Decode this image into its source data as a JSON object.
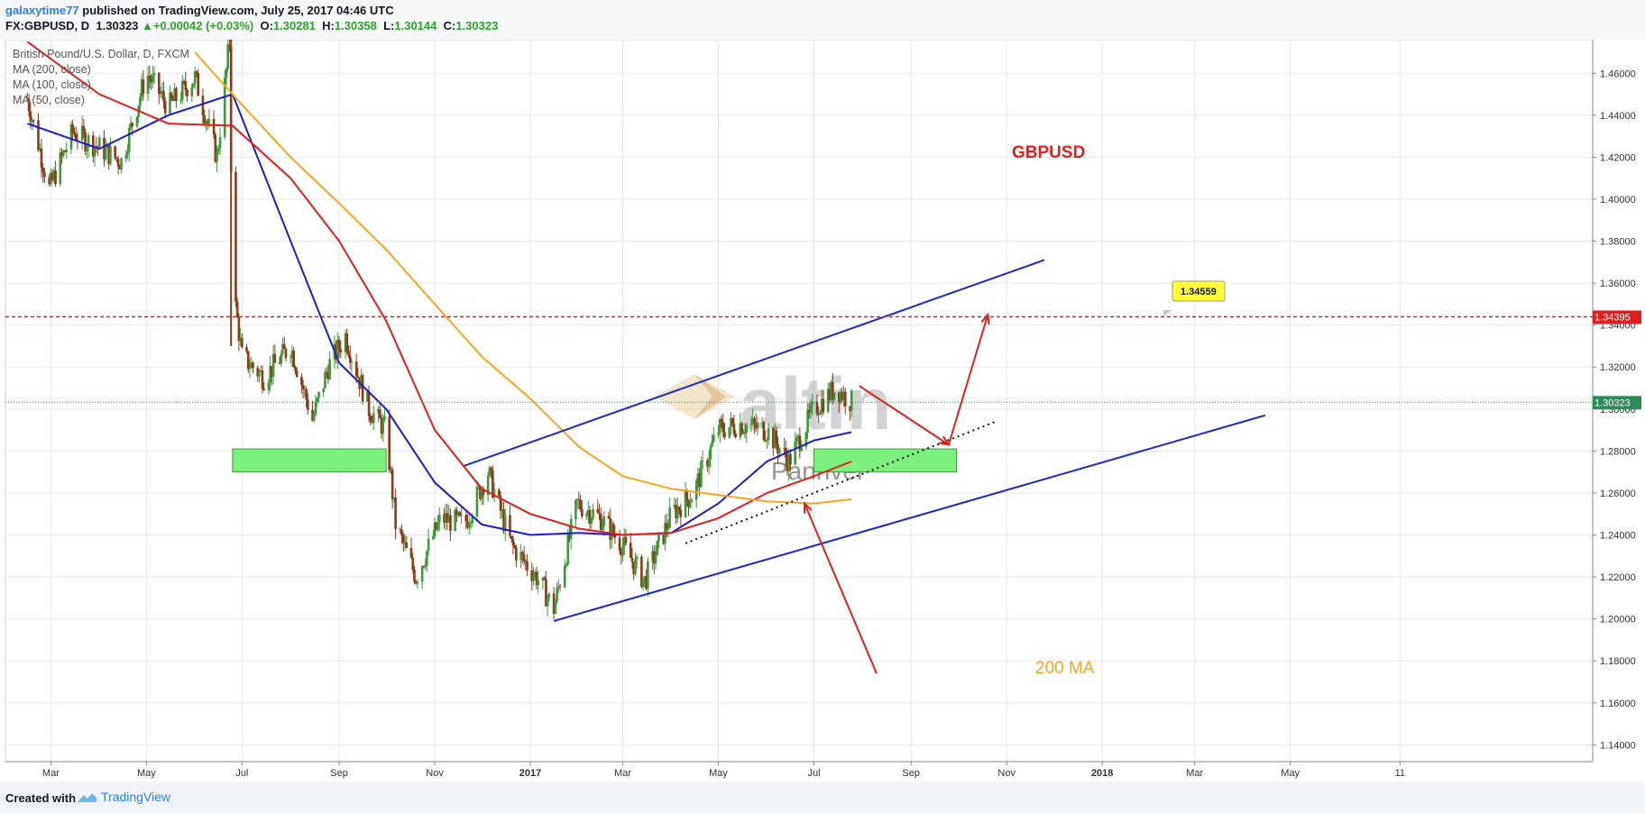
{
  "header": {
    "author": "galaxytime77",
    "published": " published on TradingView.com, July 25, 2017 04:46 UTC",
    "symbol": "FX:GBPUSD, D",
    "last": "1.30323",
    "change": "+0.00042 (+0.03%)",
    "o_label": "O:",
    "o": "1.30281",
    "h_label": "H:",
    "h": "1.30358",
    "l_label": "L:",
    "l": "1.30144",
    "c_label": "C:",
    "c": "1.30323"
  },
  "legend": {
    "title": "British Pound/U.S. Dollar, D, FXCM",
    "ma200": "MA (200, close)",
    "ma100": "MA (100, close)",
    "ma50": "MA (50, close)"
  },
  "annotations": {
    "symbol_label": "GBPUSD",
    "ma_label": "200 MA",
    "target_callout": "1.34559",
    "watermark_main": "altin",
    "watermark_sub": "Panriver"
  },
  "price_labels": {
    "resistance": "1.34395",
    "current": "1.30323"
  },
  "footer": {
    "created_with": "Created with",
    "brand": "TradingView"
  },
  "colors": {
    "ma50": "#1c1ccc",
    "ma100": "#e01e1e",
    "ma200": "#f5a623",
    "candle_up": "#3c9a3c",
    "candle_down": "#8b3a1a",
    "zone": "#7cf07c",
    "resistance": "#e01e1e",
    "channel": "#1c28cc"
  },
  "chart_data": {
    "type": "candlestick",
    "title": "British Pound/U.S. Dollar, D, FXCM",
    "x_ticks": [
      "Mar",
      "May",
      "Jul",
      "Sep",
      "Nov",
      "2017",
      "Mar",
      "May",
      "Jul",
      "Sep",
      "Nov",
      "2018",
      "Mar",
      "May",
      "11"
    ],
    "y_ticks": [
      "1.46000",
      "1.44000",
      "1.42000",
      "1.40000",
      "1.38000",
      "1.36000",
      "1.34000",
      "1.32000",
      "1.30000",
      "1.28000",
      "1.26000",
      "1.24000",
      "1.22000",
      "1.20000",
      "1.18000",
      "1.16000",
      "1.14000"
    ],
    "ylim": [
      1.132,
      1.476
    ],
    "grid": true,
    "close_series": [
      {
        "date": "2016-02-15",
        "value": 1.448
      },
      {
        "date": "2016-02-29",
        "value": 1.405
      },
      {
        "date": "2016-03-15",
        "value": 1.432
      },
      {
        "date": "2016-03-31",
        "value": 1.425
      },
      {
        "date": "2016-04-15",
        "value": 1.418
      },
      {
        "date": "2016-05-01",
        "value": 1.46
      },
      {
        "date": "2016-05-15",
        "value": 1.444
      },
      {
        "date": "2016-06-01",
        "value": 1.458
      },
      {
        "date": "2016-06-15",
        "value": 1.42
      },
      {
        "date": "2016-06-23",
        "value": 1.475
      },
      {
        "date": "2016-06-25",
        "value": 1.36
      },
      {
        "date": "2016-07-01",
        "value": 1.325
      },
      {
        "date": "2016-07-15",
        "value": 1.315
      },
      {
        "date": "2016-08-01",
        "value": 1.33
      },
      {
        "date": "2016-08-15",
        "value": 1.295
      },
      {
        "date": "2016-08-25",
        "value": 1.32
      },
      {
        "date": "2016-09-05",
        "value": 1.335
      },
      {
        "date": "2016-09-20",
        "value": 1.3
      },
      {
        "date": "2016-10-01",
        "value": 1.29
      },
      {
        "date": "2016-10-07",
        "value": 1.245
      },
      {
        "date": "2016-10-20",
        "value": 1.22
      },
      {
        "date": "2016-11-05",
        "value": 1.248
      },
      {
        "date": "2016-11-20",
        "value": 1.245
      },
      {
        "date": "2016-12-05",
        "value": 1.27
      },
      {
        "date": "2016-12-20",
        "value": 1.235
      },
      {
        "date": "2017-01-05",
        "value": 1.22
      },
      {
        "date": "2017-01-16",
        "value": 1.205
      },
      {
        "date": "2017-01-31",
        "value": 1.255
      },
      {
        "date": "2017-02-15",
        "value": 1.248
      },
      {
        "date": "2017-03-01",
        "value": 1.235
      },
      {
        "date": "2017-03-15",
        "value": 1.218
      },
      {
        "date": "2017-04-01",
        "value": 1.25
      },
      {
        "date": "2017-04-15",
        "value": 1.26
      },
      {
        "date": "2017-05-01",
        "value": 1.29
      },
      {
        "date": "2017-05-15",
        "value": 1.293
      },
      {
        "date": "2017-06-01",
        "value": 1.29
      },
      {
        "date": "2017-06-15",
        "value": 1.275
      },
      {
        "date": "2017-07-01",
        "value": 1.3
      },
      {
        "date": "2017-07-15",
        "value": 1.31
      },
      {
        "date": "2017-07-25",
        "value": 1.30323
      }
    ],
    "series": [
      {
        "name": "MA (50, close)",
        "values": [
          {
            "date": "2016-02-15",
            "value": 1.436
          },
          {
            "date": "2016-04-01",
            "value": 1.424
          },
          {
            "date": "2016-05-15",
            "value": 1.44
          },
          {
            "date": "2016-06-25",
            "value": 1.45
          },
          {
            "date": "2016-08-01",
            "value": 1.38
          },
          {
            "date": "2016-09-01",
            "value": 1.322
          },
          {
            "date": "2016-10-01",
            "value": 1.3
          },
          {
            "date": "2016-11-01",
            "value": 1.265
          },
          {
            "date": "2016-12-01",
            "value": 1.245
          },
          {
            "date": "2017-01-01",
            "value": 1.24
          },
          {
            "date": "2017-02-01",
            "value": 1.241
          },
          {
            "date": "2017-03-01",
            "value": 1.24
          },
          {
            "date": "2017-04-01",
            "value": 1.241
          },
          {
            "date": "2017-05-01",
            "value": 1.255
          },
          {
            "date": "2017-06-01",
            "value": 1.275
          },
          {
            "date": "2017-07-01",
            "value": 1.285
          },
          {
            "date": "2017-07-25",
            "value": 1.289
          }
        ]
      },
      {
        "name": "MA (100, close)",
        "values": [
          {
            "date": "2016-02-15",
            "value": 1.475
          },
          {
            "date": "2016-04-01",
            "value": 1.45
          },
          {
            "date": "2016-05-15",
            "value": 1.436
          },
          {
            "date": "2016-06-25",
            "value": 1.435
          },
          {
            "date": "2016-08-01",
            "value": 1.41
          },
          {
            "date": "2016-09-01",
            "value": 1.38
          },
          {
            "date": "2016-10-01",
            "value": 1.342
          },
          {
            "date": "2016-11-01",
            "value": 1.29
          },
          {
            "date": "2016-12-01",
            "value": 1.262
          },
          {
            "date": "2017-01-01",
            "value": 1.25
          },
          {
            "date": "2017-02-01",
            "value": 1.243
          },
          {
            "date": "2017-03-01",
            "value": 1.24
          },
          {
            "date": "2017-04-01",
            "value": 1.241
          },
          {
            "date": "2017-05-01",
            "value": 1.248
          },
          {
            "date": "2017-06-01",
            "value": 1.26
          },
          {
            "date": "2017-07-01",
            "value": 1.268
          },
          {
            "date": "2017-07-25",
            "value": 1.275
          }
        ]
      },
      {
        "name": "MA (200, close)",
        "values": [
          {
            "date": "2016-06-01",
            "value": 1.47
          },
          {
            "date": "2016-07-01",
            "value": 1.445
          },
          {
            "date": "2016-08-01",
            "value": 1.42
          },
          {
            "date": "2016-09-01",
            "value": 1.398
          },
          {
            "date": "2016-10-01",
            "value": 1.376
          },
          {
            "date": "2016-11-01",
            "value": 1.35
          },
          {
            "date": "2016-12-01",
            "value": 1.325
          },
          {
            "date": "2017-01-01",
            "value": 1.305
          },
          {
            "date": "2017-02-01",
            "value": 1.282
          },
          {
            "date": "2017-03-01",
            "value": 1.268
          },
          {
            "date": "2017-04-01",
            "value": 1.262
          },
          {
            "date": "2017-05-01",
            "value": 1.259
          },
          {
            "date": "2017-06-01",
            "value": 1.256
          },
          {
            "date": "2017-07-01",
            "value": 1.255
          },
          {
            "date": "2017-07-25",
            "value": 1.257
          }
        ]
      }
    ],
    "drawings": [
      {
        "kind": "horizontal-line",
        "name": "resistance",
        "value": 1.34395
      },
      {
        "kind": "channel-upper",
        "from": {
          "date": "2016-11-20",
          "value": 1.273
        },
        "to": {
          "date": "2017-11-25",
          "value": 1.371
        }
      },
      {
        "kind": "channel-lower",
        "from": {
          "date": "2017-01-16",
          "value": 1.199
        },
        "to": {
          "date": "2018-04-15",
          "value": 1.297
        }
      },
      {
        "kind": "dotted-trendline",
        "from": {
          "date": "2017-04-10",
          "value": 1.236
        },
        "to": {
          "date": "2017-10-25",
          "value": 1.294
        }
      },
      {
        "kind": "support-zone",
        "from": {
          "date": "2016-06-25",
          "value": 1.27
        },
        "to": {
          "date": "2016-10-01",
          "value": 1.281
        }
      },
      {
        "kind": "support-zone",
        "from": {
          "date": "2017-07-01",
          "value": 1.27
        },
        "to": {
          "date": "2017-09-30",
          "value": 1.281
        }
      },
      {
        "kind": "arrow",
        "from": {
          "date": "2017-07-30",
          "value": 1.311
        },
        "to": {
          "date": "2017-09-25",
          "value": 1.283
        }
      },
      {
        "kind": "arrow",
        "from": {
          "date": "2017-09-25",
          "value": 1.283
        },
        "to": {
          "date": "2017-10-20",
          "value": 1.345
        }
      },
      {
        "kind": "arrow",
        "from": {
          "date": "2017-08-10",
          "value": 1.174
        },
        "to": {
          "date": "2017-06-25",
          "value": 1.255
        }
      }
    ]
  }
}
